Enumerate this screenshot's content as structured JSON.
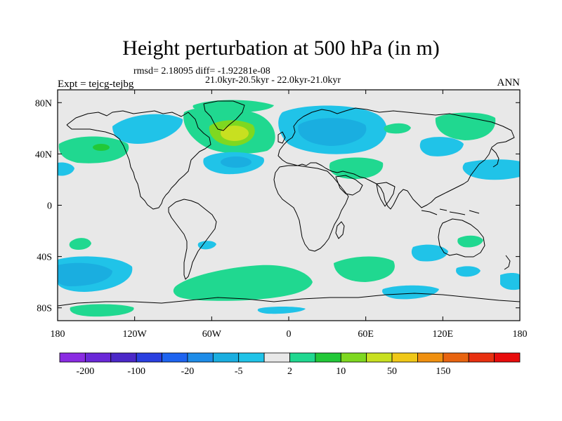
{
  "title": "Height perturbation at 500 hPa (in m)",
  "stats": "rmsd= 2.18095 diff= -1.92281e-08",
  "period": "21.0kyr-20.5kyr - 22.0kyr-21.0kyr",
  "experiment": "Expt = tejcg-tejbg",
  "season": "ANN",
  "map": {
    "projection": "cylindrical equidistant",
    "lon_range": [
      -180,
      180
    ],
    "lat_range": [
      -90,
      90
    ],
    "lon_ticks": [
      {
        "value": -180,
        "label": "180"
      },
      {
        "value": -120,
        "label": "120W"
      },
      {
        "value": -60,
        "label": "60W"
      },
      {
        "value": 0,
        "label": "0"
      },
      {
        "value": 60,
        "label": "60E"
      },
      {
        "value": 120,
        "label": "120E"
      },
      {
        "value": 180,
        "label": "180"
      }
    ],
    "lat_ticks": [
      {
        "value": 80,
        "label": "80N"
      },
      {
        "value": 40,
        "label": "40N"
      },
      {
        "value": 0,
        "label": "0"
      },
      {
        "value": -40,
        "label": "40S"
      },
      {
        "value": -80,
        "label": "80S"
      }
    ],
    "background_color": "#e8e8e8",
    "coastline_color": "#000000"
  },
  "colorbar": {
    "colors": [
      "#8a2be2",
      "#6a28d8",
      "#4b28c8",
      "#2a3fe0",
      "#1e64f0",
      "#1e8ce8",
      "#1aaee0",
      "#20c3e8",
      "#e8e8e8",
      "#20d890",
      "#22c838",
      "#7ed820",
      "#c8e020",
      "#f0c818",
      "#f09010",
      "#e86410",
      "#e83010",
      "#e80c0c"
    ],
    "labels": [
      "-200",
      "-100",
      "-20",
      "-5",
      "2",
      "10",
      "50",
      "150"
    ]
  }
}
